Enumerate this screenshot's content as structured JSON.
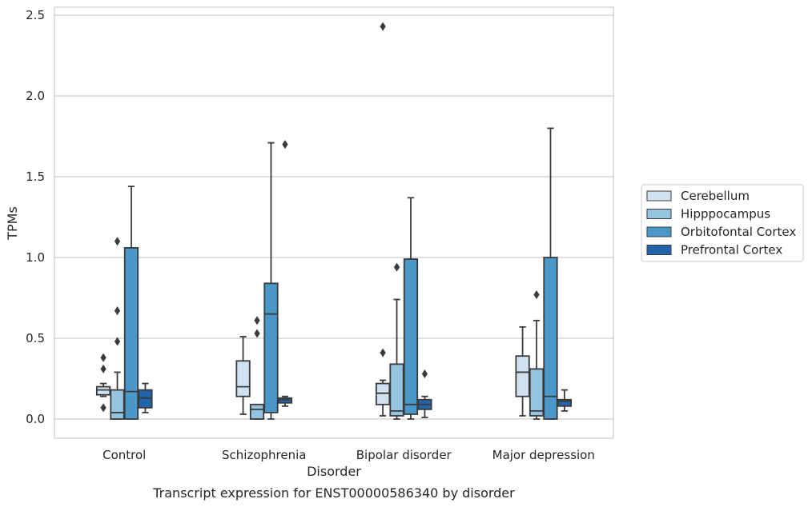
{
  "chart_data": {
    "type": "box",
    "title": "",
    "caption": "Transcript expression for ENST00000586340 by disorder",
    "xlabel": "Disorder",
    "ylabel": "TPMs",
    "ylim": [
      -0.12,
      2.56
    ],
    "yticks": [
      0.0,
      0.5,
      1.0,
      1.5,
      2.0,
      2.5
    ],
    "ytick_labels": [
      "0.0",
      "0.5",
      "1.0",
      "1.5",
      "2.0",
      "2.5"
    ],
    "grid": "horizontal",
    "legend_position": "right",
    "categories": [
      "Control",
      "Schizophrenia",
      "Bipolar disorder",
      "Major depression"
    ],
    "series": [
      {
        "name": "Cerebellum",
        "color": "#d0e1f2",
        "boxes": [
          {
            "whisker_low": 0.14,
            "q1": 0.15,
            "median": 0.18,
            "q3": 0.2,
            "whisker_high": 0.22,
            "outliers": [
              0.38,
              0.31,
              0.07
            ]
          },
          {
            "whisker_low": 0.03,
            "q1": 0.14,
            "median": 0.2,
            "q3": 0.36,
            "whisker_high": 0.51,
            "outliers": []
          },
          {
            "whisker_low": 0.02,
            "q1": 0.09,
            "median": 0.16,
            "q3": 0.22,
            "whisker_high": 0.24,
            "outliers": [
              0.41,
              2.43
            ]
          },
          {
            "whisker_low": 0.02,
            "q1": 0.14,
            "median": 0.29,
            "q3": 0.39,
            "whisker_high": 0.57,
            "outliers": []
          }
        ]
      },
      {
        "name": "Hipppocampus",
        "color": "#94c4df",
        "boxes": [
          {
            "whisker_low": 0.0,
            "q1": 0.0,
            "median": 0.04,
            "q3": 0.18,
            "whisker_high": 0.29,
            "outliers": [
              1.1,
              0.67,
              0.48
            ]
          },
          {
            "whisker_low": 0.0,
            "q1": 0.0,
            "median": 0.06,
            "q3": 0.09,
            "whisker_high": 0.09,
            "outliers": [
              0.61,
              0.53
            ]
          },
          {
            "whisker_low": 0.0,
            "q1": 0.02,
            "median": 0.05,
            "q3": 0.34,
            "whisker_high": 0.74,
            "outliers": [
              0.94
            ]
          },
          {
            "whisker_low": 0.0,
            "q1": 0.02,
            "median": 0.05,
            "q3": 0.31,
            "whisker_high": 0.61,
            "outliers": [
              0.77
            ]
          }
        ]
      },
      {
        "name": "Orbitofontal Cortex",
        "color": "#4a98c9",
        "boxes": [
          {
            "whisker_low": 0.0,
            "q1": 0.0,
            "median": 0.17,
            "q3": 1.06,
            "whisker_high": 1.44,
            "outliers": []
          },
          {
            "whisker_low": 0.0,
            "q1": 0.04,
            "median": 0.65,
            "q3": 0.84,
            "whisker_high": 1.71,
            "outliers": []
          },
          {
            "whisker_low": 0.0,
            "q1": 0.03,
            "median": 0.09,
            "q3": 0.99,
            "whisker_high": 1.37,
            "outliers": []
          },
          {
            "whisker_low": 0.0,
            "q1": 0.0,
            "median": 0.14,
            "q3": 1.0,
            "whisker_high": 1.8,
            "outliers": []
          }
        ]
      },
      {
        "name": "Prefrontal Cortex",
        "color": "#2164ab",
        "boxes": [
          {
            "whisker_low": 0.04,
            "q1": 0.07,
            "median": 0.13,
            "q3": 0.18,
            "whisker_high": 0.22,
            "outliers": []
          },
          {
            "whisker_low": 0.08,
            "q1": 0.1,
            "median": 0.12,
            "q3": 0.13,
            "whisker_high": 0.14,
            "outliers": [
              1.7
            ]
          },
          {
            "whisker_low": 0.01,
            "q1": 0.06,
            "median": 0.09,
            "q3": 0.12,
            "whisker_high": 0.14,
            "outliers": [
              0.28
            ]
          },
          {
            "whisker_low": 0.05,
            "q1": 0.08,
            "median": 0.11,
            "q3": 0.12,
            "whisker_high": 0.18,
            "outliers": []
          }
        ]
      }
    ]
  }
}
